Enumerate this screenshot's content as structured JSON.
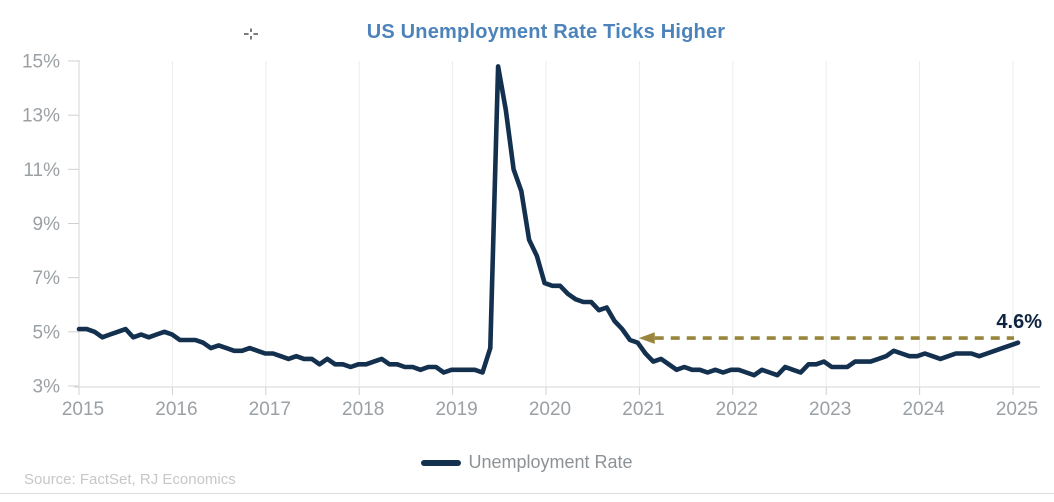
{
  "title": {
    "text": "US Unemployment Rate Ticks Higher",
    "color": "#4c83ba"
  },
  "legend": {
    "label": "Unemployment Rate",
    "swatch_color": "#14304f"
  },
  "source": {
    "text": "Source: FactSet, RJ Economics"
  },
  "cursor": {
    "icon": "crosshair-cursor",
    "color": "#444444"
  },
  "colors": {
    "series_line": "#14304f",
    "axis_text": "#9aa0a4",
    "axis_line": "#d6d6d6",
    "tick_line": "#d0d0d0",
    "year_gridline": "#ededed",
    "arrow_gold": "#9a853c",
    "annotation_text": "#0e2440"
  },
  "chart_data": {
    "type": "line",
    "title": "US Unemployment Rate Ticks Higher",
    "xlabel": "",
    "ylabel": "",
    "ylim": [
      3,
      15
    ],
    "x_tick_labels": [
      "2015",
      "2016",
      "2017",
      "2018",
      "2019",
      "2020",
      "2021",
      "2022",
      "2023",
      "2024",
      "2025"
    ],
    "y_ticks": {
      "labels": [
        "15%",
        "13%",
        "11%",
        "9%",
        "7%",
        "5%",
        "3%"
      ],
      "values": [
        15,
        13,
        11,
        9,
        7,
        5,
        3
      ]
    },
    "grid": "faint vertical gridlines at each year; no horizontal gridlines",
    "legend_position": "bottom-center",
    "series": [
      {
        "name": "Unemployment Rate",
        "color": "#14304f",
        "frequency": "monthly",
        "x_span_years": [
          2015,
          2025
        ],
        "values": [
          5.1,
          5.1,
          5.0,
          4.8,
          4.9,
          5.0,
          5.1,
          4.8,
          4.9,
          4.8,
          4.9,
          5.0,
          4.9,
          4.7,
          4.7,
          4.7,
          4.6,
          4.4,
          4.5,
          4.4,
          4.3,
          4.3,
          4.4,
          4.3,
          4.2,
          4.2,
          4.1,
          4.0,
          4.1,
          4.0,
          4.0,
          3.8,
          4.0,
          3.8,
          3.8,
          3.7,
          3.8,
          3.8,
          3.9,
          4.0,
          3.8,
          3.8,
          3.7,
          3.7,
          3.6,
          3.7,
          3.7,
          3.5,
          3.6,
          3.6,
          3.6,
          3.6,
          3.5,
          4.4,
          14.8,
          13.2,
          11.0,
          10.2,
          8.4,
          7.8,
          6.8,
          6.7,
          6.7,
          6.4,
          6.2,
          6.1,
          6.1,
          5.8,
          5.9,
          5.4,
          5.1,
          4.7,
          4.6,
          4.2,
          3.9,
          4.0,
          3.8,
          3.6,
          3.7,
          3.6,
          3.6,
          3.5,
          3.6,
          3.5,
          3.6,
          3.6,
          3.5,
          3.4,
          3.6,
          3.5,
          3.4,
          3.7,
          3.6,
          3.5,
          3.8,
          3.8,
          3.9,
          3.7,
          3.7,
          3.7,
          3.9,
          3.9,
          3.9,
          4.0,
          4.1,
          4.3,
          4.2,
          4.1,
          4.1,
          4.2,
          4.1,
          4.0,
          4.1,
          4.2,
          4.2,
          4.2,
          4.1,
          4.2,
          4.3,
          4.4,
          4.5,
          4.6
        ]
      }
    ],
    "annotation": {
      "label": "4.6%",
      "value": 4.6,
      "arrow": {
        "style": "dashed",
        "direction": "left",
        "color": "#9a853c",
        "level": 4.77,
        "from_index": 72,
        "to": "series-end",
        "meaning": "current 4.6% rate points back to when the rate was last this high (2021)"
      }
    }
  }
}
